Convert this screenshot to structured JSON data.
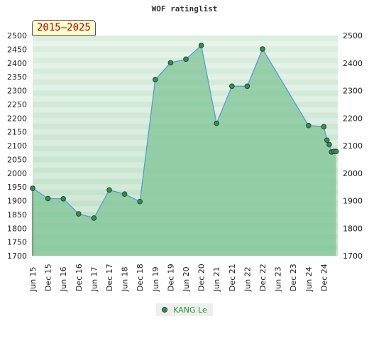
{
  "title": "WOF ratinglist",
  "period": "2015–2025",
  "colors": {
    "fill": "#7ec495",
    "line": "#5a9bd4",
    "marker": "#3c8a54",
    "marker_stroke": "#1d4d2c",
    "legend_text": "#229933",
    "badge_text": "#cc0000"
  },
  "chart_data": {
    "type": "area",
    "title": "WOF ratinglist",
    "xlabel": "",
    "ylabel": "",
    "ylim": [
      1700,
      2500
    ],
    "yticks": [
      1700,
      1750,
      1800,
      1850,
      1900,
      1950,
      2000,
      2050,
      2100,
      2150,
      2200,
      2250,
      2300,
      2350,
      2400,
      2450,
      2500
    ],
    "yticks_right": [
      1700,
      1800,
      1900,
      2000,
      2100,
      2200,
      2300,
      2400,
      2500
    ],
    "xticks": [
      "Jun 15",
      "Dec 15",
      "Jun 16",
      "Dec 16",
      "Jun 17",
      "Dec 17",
      "Jun 18",
      "Dec 18",
      "Jun 19",
      "Dec 19",
      "Jun 20",
      "Dec 20",
      "Jun 21",
      "Dec 21",
      "Jun 22",
      "Dec 22",
      "Jun 23",
      "Dec 23",
      "Jun 24",
      "Dec 24"
    ],
    "grid": true,
    "legend": "bottom-center",
    "series": [
      {
        "name": "KANG Le",
        "points": [
          {
            "x": 0,
            "y": 1945
          },
          {
            "x": 1,
            "y": 1908
          },
          {
            "x": 2,
            "y": 1907
          },
          {
            "x": 3,
            "y": 1852
          },
          {
            "x": 4,
            "y": 1837
          },
          {
            "x": 5,
            "y": 1939
          },
          {
            "x": 6,
            "y": 1924
          },
          {
            "x": 7,
            "y": 1897
          },
          {
            "x": 8,
            "y": 2340
          },
          {
            "x": 9,
            "y": 2401
          },
          {
            "x": 10,
            "y": 2414
          },
          {
            "x": 11,
            "y": 2464
          },
          {
            "x": 12,
            "y": 2181
          },
          {
            "x": 13,
            "y": 2316
          },
          {
            "x": 14,
            "y": 2316
          },
          {
            "x": 15,
            "y": 2451
          },
          {
            "x": 18,
            "y": 2173
          },
          {
            "x": 19,
            "y": 2169
          },
          {
            "x": 19.2,
            "y": 2120
          },
          {
            "x": 19.35,
            "y": 2104
          },
          {
            "x": 19.5,
            "y": 2077
          },
          {
            "x": 19.65,
            "y": 2079
          },
          {
            "x": 19.8,
            "y": 2079
          }
        ]
      }
    ]
  }
}
